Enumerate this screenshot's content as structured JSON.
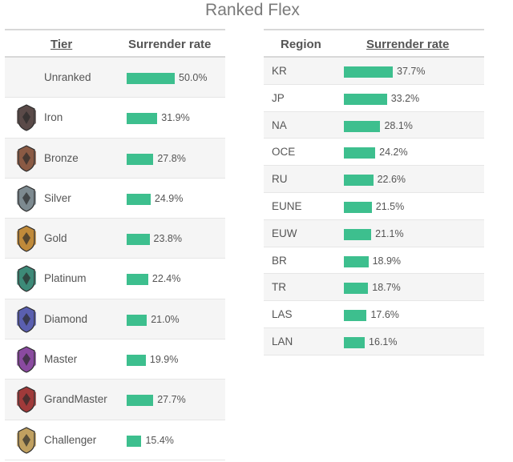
{
  "title": "Ranked Flex",
  "tier_table": {
    "header_tier": "Tier",
    "header_rate": "Surrender rate",
    "rows": [
      {
        "label": "Unranked",
        "value": 50.0,
        "text": "50.0%",
        "emblem": "none",
        "color": ""
      },
      {
        "label": "Iron",
        "value": 31.9,
        "text": "31.9%",
        "emblem": "iron-emblem-icon",
        "color": "#5a4a48"
      },
      {
        "label": "Bronze",
        "value": 27.8,
        "text": "27.8%",
        "emblem": "bronze-emblem-icon",
        "color": "#8a5a44"
      },
      {
        "label": "Silver",
        "value": 24.9,
        "text": "24.9%",
        "emblem": "silver-emblem-icon",
        "color": "#7d8a90"
      },
      {
        "label": "Gold",
        "value": 23.8,
        "text": "23.8%",
        "emblem": "gold-emblem-icon",
        "color": "#c08a3a"
      },
      {
        "label": "Platinum",
        "value": 22.4,
        "text": "22.4%",
        "emblem": "platinum-emblem-icon",
        "color": "#3d8a78"
      },
      {
        "label": "Diamond",
        "value": 21.0,
        "text": "21.0%",
        "emblem": "diamond-emblem-icon",
        "color": "#5a5fb0"
      },
      {
        "label": "Master",
        "value": 19.9,
        "text": "19.9%",
        "emblem": "master-emblem-icon",
        "color": "#8a4aa0"
      },
      {
        "label": "GrandMaster",
        "value": 27.7,
        "text": "27.7%",
        "emblem": "grandmaster-emblem-icon",
        "color": "#a03a3a"
      },
      {
        "label": "Challenger",
        "value": 15.4,
        "text": "15.4%",
        "emblem": "challenger-emblem-icon",
        "color": "#c0a060"
      }
    ]
  },
  "region_table": {
    "header_region": "Region",
    "header_rate": "Surrender rate",
    "rows": [
      {
        "label": "KR",
        "value": 37.7,
        "text": "37.7%"
      },
      {
        "label": "JP",
        "value": 33.2,
        "text": "33.2%"
      },
      {
        "label": "NA",
        "value": 28.1,
        "text": "28.1%"
      },
      {
        "label": "OCE",
        "value": 24.2,
        "text": "24.2%"
      },
      {
        "label": "RU",
        "value": 22.6,
        "text": "22.6%"
      },
      {
        "label": "EUNE",
        "value": 21.5,
        "text": "21.5%"
      },
      {
        "label": "EUW",
        "value": 21.1,
        "text": "21.1%"
      },
      {
        "label": "BR",
        "value": 18.9,
        "text": "18.9%"
      },
      {
        "label": "TR",
        "value": 18.7,
        "text": "18.7%"
      },
      {
        "label": "LAS",
        "value": 17.6,
        "text": "17.6%"
      },
      {
        "label": "LAN",
        "value": 16.1,
        "text": "16.1%"
      }
    ]
  },
  "bar_color": "#3dbf8e",
  "chart_data": [
    {
      "type": "bar",
      "title": "Ranked Flex",
      "xlabel": "Tier",
      "ylabel": "Surrender rate",
      "categories": [
        "Unranked",
        "Iron",
        "Bronze",
        "Silver",
        "Gold",
        "Platinum",
        "Diamond",
        "Master",
        "GrandMaster",
        "Challenger"
      ],
      "values": [
        50.0,
        31.9,
        27.8,
        24.9,
        23.8,
        22.4,
        21.0,
        19.9,
        27.7,
        15.4
      ]
    },
    {
      "type": "bar",
      "xlabel": "Region",
      "ylabel": "Surrender rate",
      "categories": [
        "KR",
        "JP",
        "NA",
        "OCE",
        "RU",
        "EUNE",
        "EUW",
        "BR",
        "TR",
        "LAS",
        "LAN"
      ],
      "values": [
        37.7,
        33.2,
        28.1,
        24.2,
        22.6,
        21.5,
        21.1,
        18.9,
        18.7,
        17.6,
        16.1
      ]
    }
  ]
}
